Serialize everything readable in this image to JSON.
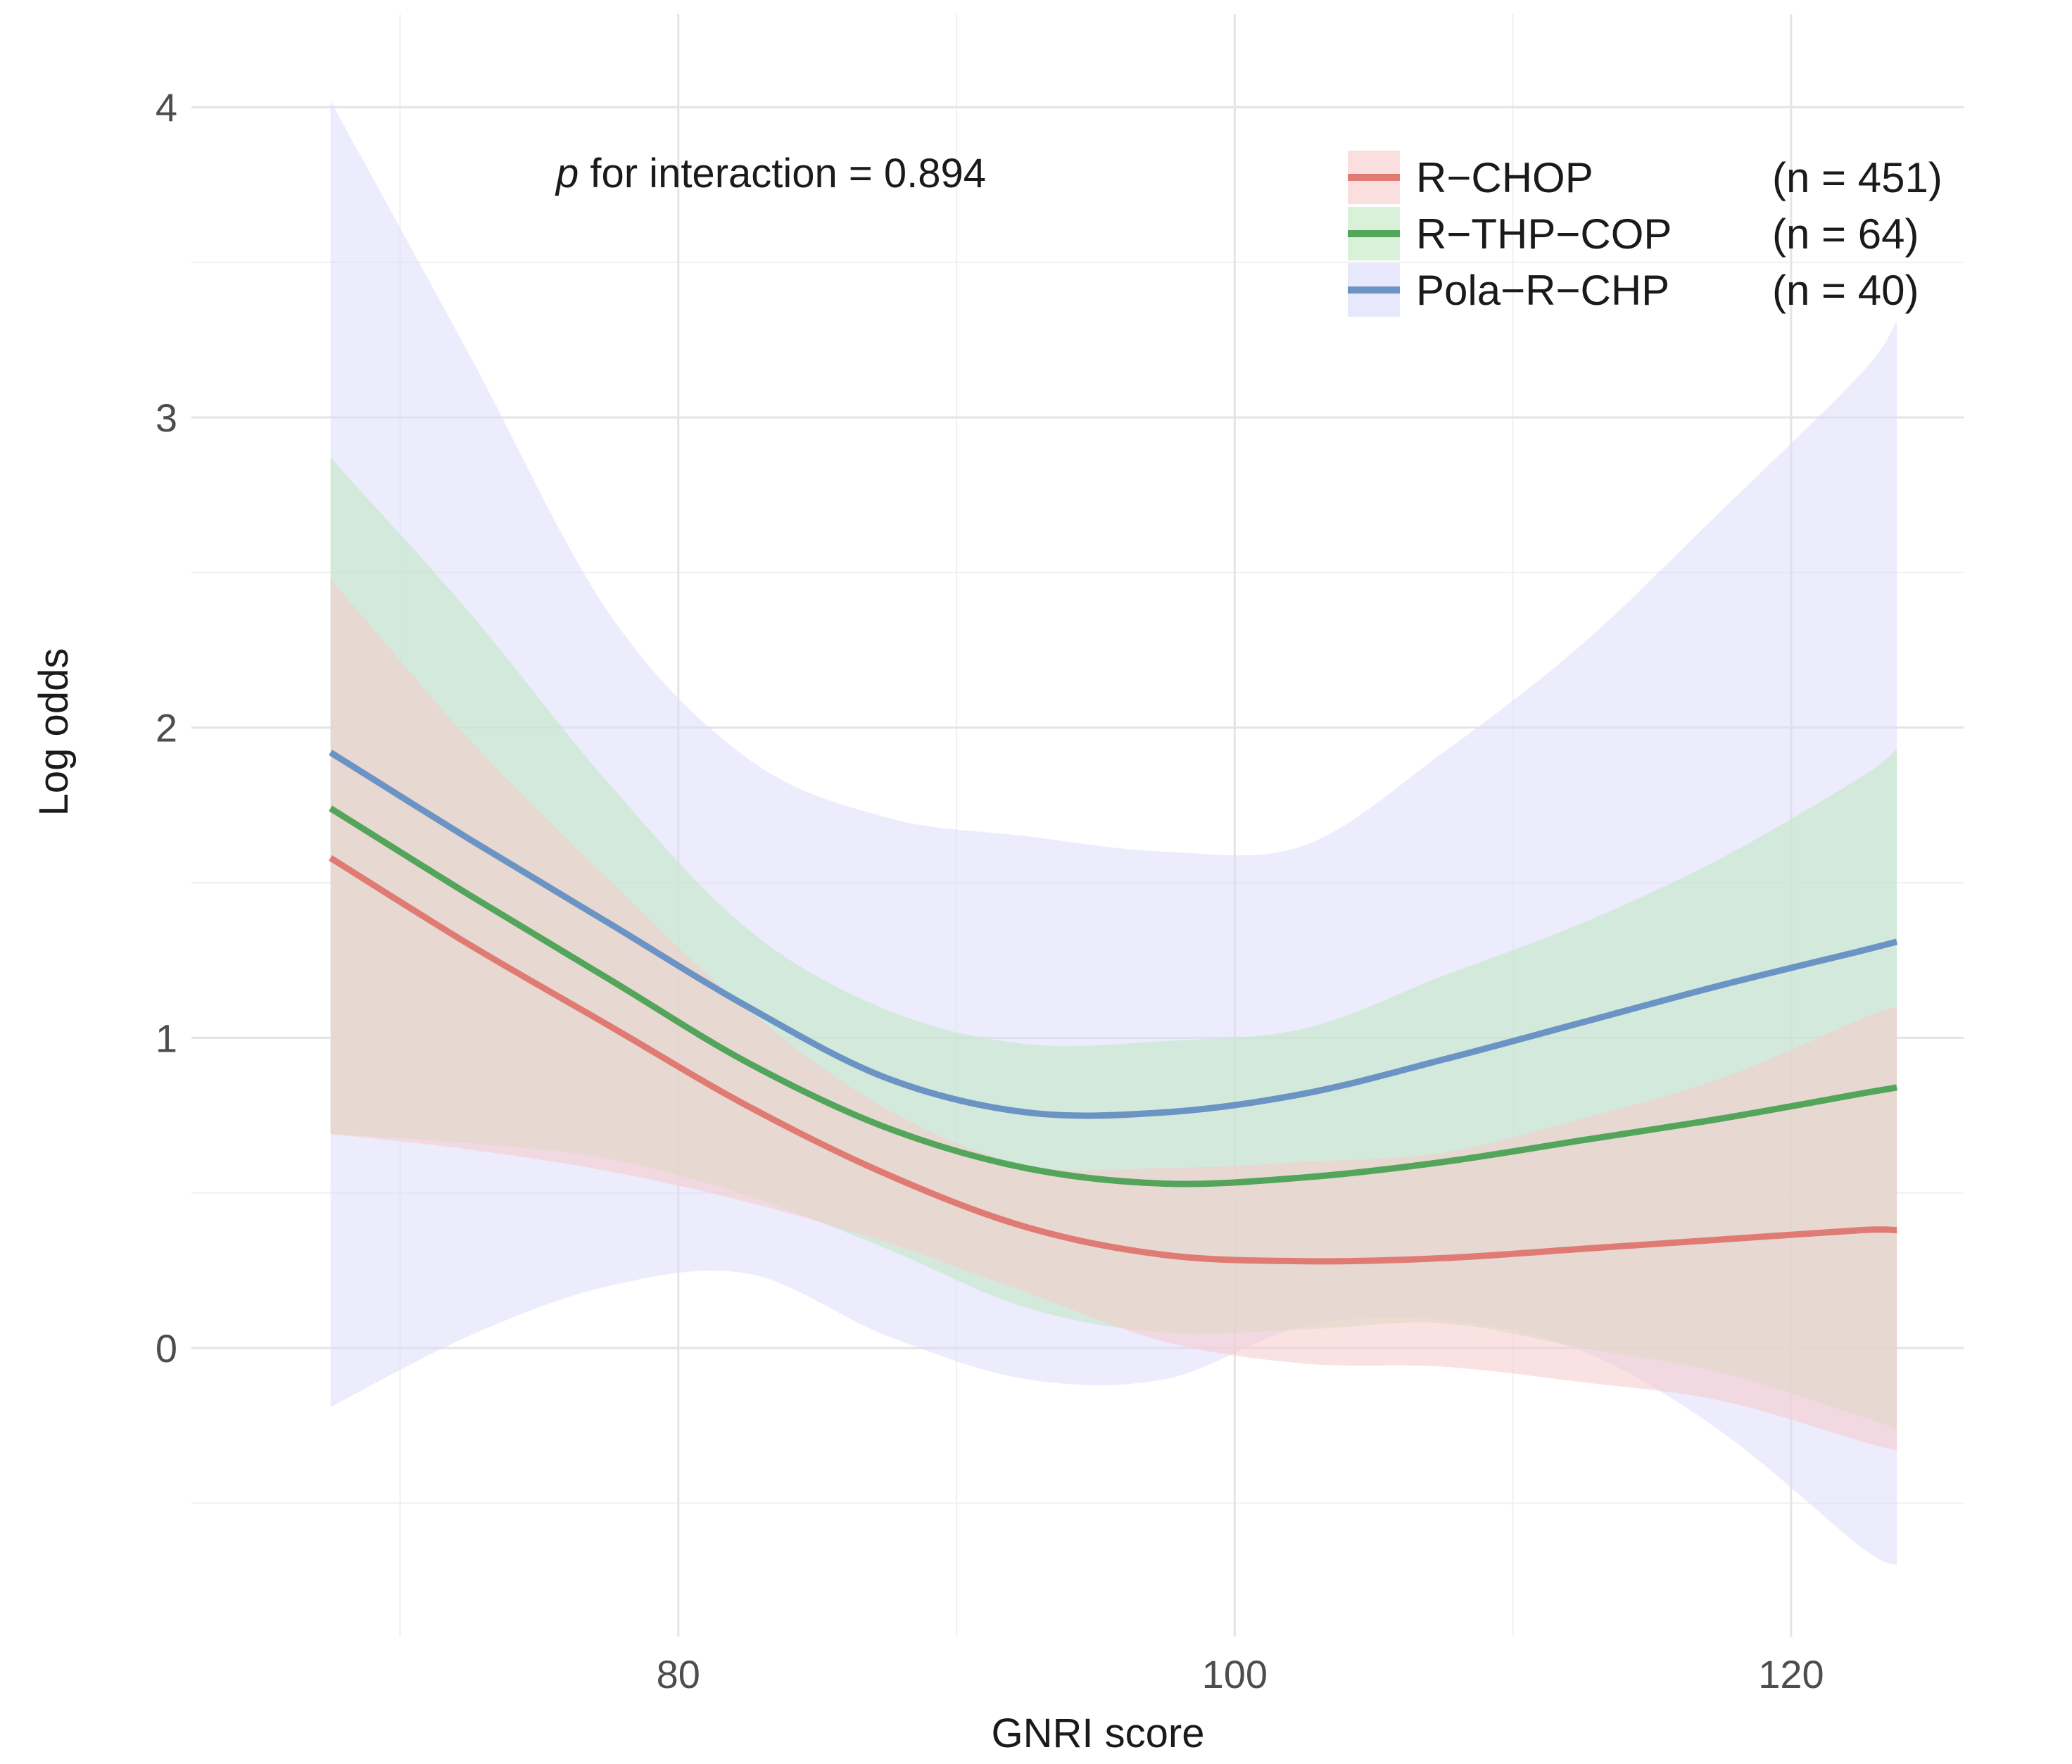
{
  "chart_data": {
    "type": "line",
    "title": "",
    "xlabel": "GNRI score",
    "ylabel": "Log odds",
    "xlim": [
      62.5,
      126.2
    ],
    "ylim": [
      -0.93,
      4.3
    ],
    "x_ticks": [
      80,
      100,
      120
    ],
    "x_tick_labels": [
      "80",
      "100",
      "120"
    ],
    "y_ticks": [
      0,
      1,
      2,
      3,
      4
    ],
    "y_tick_labels": [
      "0",
      "1",
      "2",
      "3",
      "4"
    ],
    "grid": true,
    "legend_position": "top-right",
    "annotation": {
      "italic": "p",
      "rest": " for interaction = 0.894"
    },
    "x": [
      67.5,
      72.5,
      77.5,
      82.5,
      87.5,
      92.5,
      97.5,
      102.5,
      107.5,
      112.5,
      117.5,
      122.5,
      123.8
    ],
    "series": [
      {
        "name": "R−CHOP",
        "n_label": "(n = 451)",
        "color": "#e07b74",
        "band_color": "#f8caca",
        "values": [
          1.58,
          1.3,
          1.04,
          0.78,
          0.56,
          0.39,
          0.3,
          0.28,
          0.29,
          0.32,
          0.35,
          0.38,
          0.38
        ],
        "lower": [
          0.69,
          0.64,
          0.57,
          0.47,
          0.34,
          0.18,
          0.02,
          -0.05,
          -0.06,
          -0.11,
          -0.17,
          -0.3,
          -0.33
        ],
        "upper": [
          2.48,
          1.96,
          1.51,
          1.09,
          0.77,
          0.59,
          0.58,
          0.6,
          0.63,
          0.74,
          0.87,
          1.06,
          1.1
        ]
      },
      {
        "name": "R−THP−COP",
        "n_label": "(n = 64)",
        "color": "#52a55a",
        "band_color": "#bfe8bf",
        "values": [
          1.74,
          1.46,
          1.19,
          0.92,
          0.71,
          0.58,
          0.53,
          0.55,
          0.6,
          0.67,
          0.74,
          0.82,
          0.84
        ],
        "lower": [
          0.69,
          0.66,
          0.61,
          0.49,
          0.32,
          0.13,
          0.05,
          0.06,
          0.08,
          0.0,
          -0.08,
          -0.22,
          -0.26
        ],
        "upper": [
          2.87,
          2.37,
          1.82,
          1.35,
          1.09,
          0.98,
          0.99,
          1.03,
          1.2,
          1.37,
          1.58,
          1.84,
          1.93
        ]
      },
      {
        "name": "Pola−R−CHP",
        "n_label": "(n = 40)",
        "color": "#6b93c4",
        "band_color": "#d9d9fb",
        "values": [
          1.92,
          1.64,
          1.37,
          1.1,
          0.87,
          0.76,
          0.76,
          0.82,
          0.93,
          1.05,
          1.17,
          1.28,
          1.31
        ],
        "lower": [
          -0.19,
          0.04,
          0.2,
          0.24,
          0.04,
          -0.1,
          -0.1,
          0.07,
          0.09,
          -0.01,
          -0.27,
          -0.64,
          -0.7
        ],
        "upper": [
          4.02,
          3.2,
          2.37,
          1.9,
          1.71,
          1.65,
          1.6,
          1.62,
          1.92,
          2.27,
          2.7,
          3.14,
          3.31
        ]
      }
    ]
  }
}
